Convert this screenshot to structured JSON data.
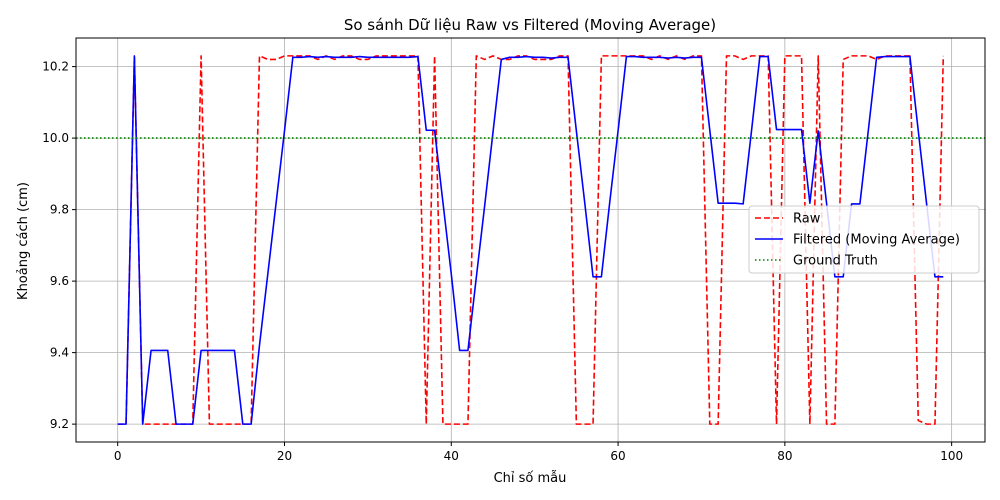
{
  "chart_data": {
    "type": "line",
    "title": "So sánh Dữ liệu Raw vs Filtered (Moving Average)",
    "xlabel": "Chỉ số mẫu",
    "ylabel": "Khoảng cách (cm)",
    "xlim": [
      -5,
      104
    ],
    "ylim": [
      9.15,
      10.28
    ],
    "xticks": [
      0,
      20,
      40,
      60,
      80,
      100
    ],
    "yticks": [
      9.2,
      9.4,
      9.6,
      9.8,
      10.0,
      10.2
    ],
    "grid": true,
    "legend_position": "center-right",
    "series": [
      {
        "name": "Raw",
        "style": "dashed",
        "color": "#ff0000",
        "values": [
          9.2,
          9.2,
          10.23,
          9.2,
          9.2,
          9.2,
          9.2,
          9.2,
          9.2,
          9.2,
          10.23,
          9.2,
          9.2,
          9.2,
          9.2,
          9.2,
          9.2,
          10.23,
          10.22,
          10.22,
          10.23,
          10.23,
          10.23,
          10.23,
          10.22,
          10.23,
          10.22,
          10.23,
          10.23,
          10.22,
          10.22,
          10.23,
          10.23,
          10.23,
          10.23,
          10.23,
          10.23,
          9.2,
          10.23,
          9.2,
          9.2,
          9.2,
          9.2,
          10.23,
          10.22,
          10.23,
          10.22,
          10.22,
          10.23,
          10.23,
          10.22,
          10.22,
          10.22,
          10.23,
          10.23,
          9.2,
          9.2,
          9.2,
          10.23,
          10.23,
          10.23,
          10.23,
          10.23,
          10.23,
          10.22,
          10.23,
          10.22,
          10.23,
          10.22,
          10.23,
          10.23,
          9.2,
          9.2,
          10.23,
          10.23,
          10.22,
          10.23,
          10.23,
          10.23,
          9.2,
          10.23,
          10.23,
          10.23,
          9.2,
          10.23,
          9.2,
          9.2,
          10.22,
          10.23,
          10.23,
          10.23,
          10.22,
          10.23,
          10.23,
          10.23,
          10.23,
          9.21,
          9.2,
          9.2,
          10.23
        ]
      },
      {
        "name": "Filtered (Moving Average)",
        "style": "solid",
        "color": "#0000ff",
        "values": [
          9.2,
          9.2,
          10.23,
          9.2,
          9.406,
          9.406,
          9.406,
          9.2,
          9.2,
          9.2,
          9.406,
          9.406,
          9.406,
          9.406,
          9.406,
          9.2,
          9.2,
          9.42,
          9.62,
          9.82,
          10.02,
          10.226,
          10.226,
          10.228,
          10.226,
          10.228,
          10.226,
          10.226,
          10.226,
          10.228,
          10.226,
          10.226,
          10.226,
          10.226,
          10.226,
          10.226,
          10.228,
          10.022,
          10.022,
          9.82,
          9.62,
          9.406,
          9.406,
          9.61,
          9.81,
          10.016,
          10.22,
          10.226,
          10.226,
          10.228,
          10.226,
          10.226,
          10.224,
          10.226,
          10.226,
          10.02,
          9.82,
          9.612,
          9.612,
          9.82,
          10.02,
          10.228,
          10.228,
          10.226,
          10.226,
          10.226,
          10.224,
          10.226,
          10.224,
          10.226,
          10.226,
          10.022,
          9.818,
          9.818,
          9.818,
          9.816,
          10.02,
          10.228,
          10.228,
          10.024,
          10.024,
          10.024,
          10.024,
          9.818,
          10.02,
          9.818,
          9.612,
          9.612,
          9.816,
          9.816,
          10.02,
          10.226,
          10.228,
          10.228,
          10.228,
          10.228,
          10.02,
          9.816,
          9.612,
          9.612
        ]
      },
      {
        "name": "Ground Truth",
        "style": "dotted",
        "color": "#008000",
        "y": 10.0
      }
    ]
  }
}
